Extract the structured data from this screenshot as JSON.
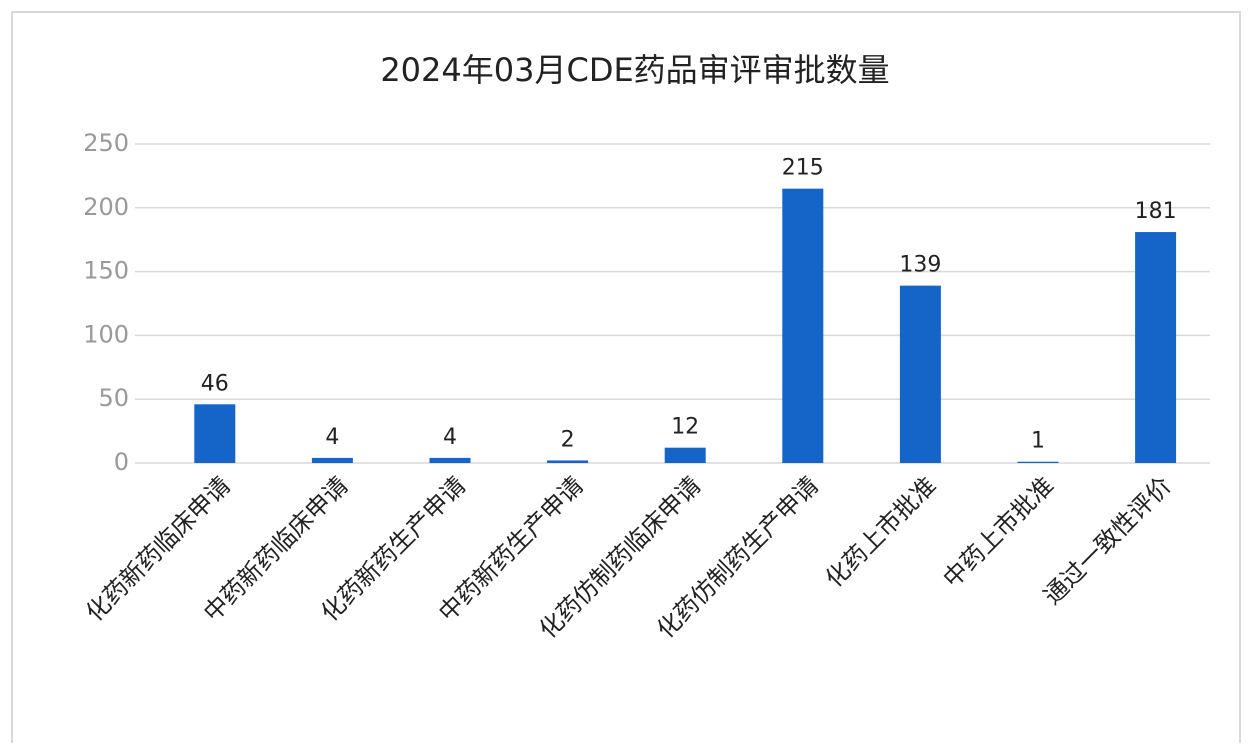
{
  "chart_data": {
    "type": "bar",
    "title": "2024年03月CDE药品审评审批数量",
    "categories": [
      "化药新药临床申请",
      "中药新药临床申请",
      "化药新药生产申请",
      "中药新药生产申请",
      "化药仿制药临床申请",
      "化药仿制药生产申请",
      "化药上市批准",
      "中药上市批准",
      "通过一致性评价"
    ],
    "values": [
      46,
      4,
      4,
      2,
      12,
      215,
      139,
      1,
      181
    ],
    "color": "#1565c8",
    "ylim": [
      0,
      250
    ],
    "yticks": [
      0,
      50,
      100,
      150,
      200,
      250
    ],
    "grid": true
  }
}
